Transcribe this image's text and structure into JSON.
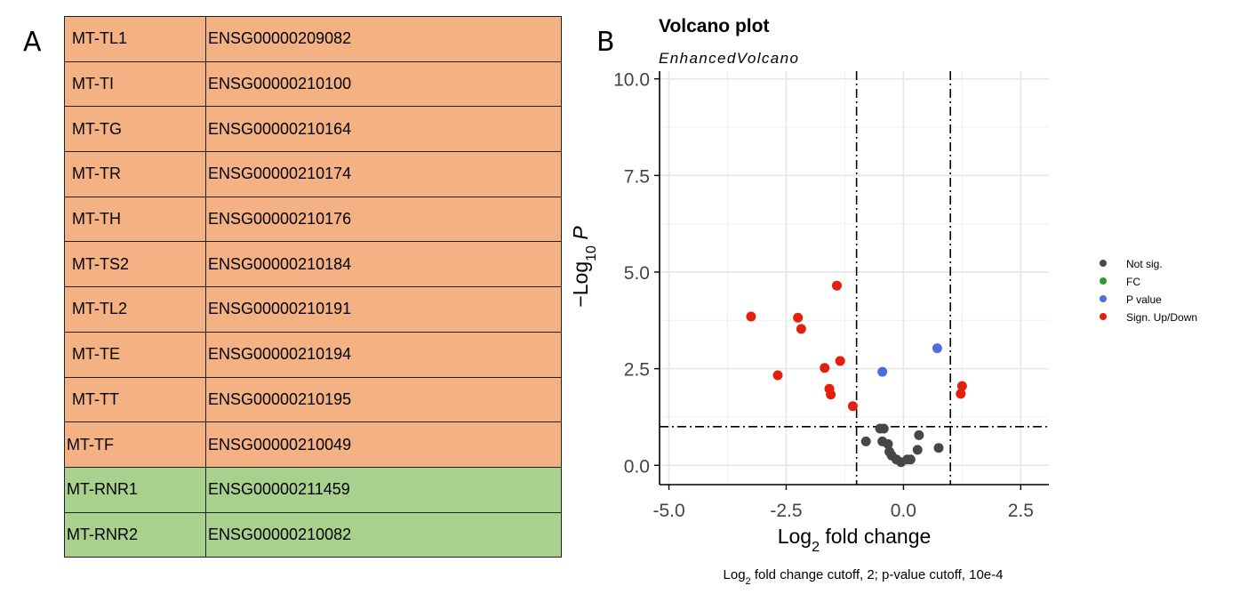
{
  "panel_labels": {
    "a": "A",
    "b": "B"
  },
  "colors": {
    "orange": "#f4b183",
    "green": "#a9d18e",
    "not_sig": "#474747",
    "fc": "#2a9d2a",
    "pvalue": "#4c6ce0",
    "sig": "#e3200b"
  },
  "table": {
    "rows": [
      {
        "symbol": "MT-TL1",
        "ensembl": "ENSG00000209082",
        "group": "orange"
      },
      {
        "symbol": "MT-TI",
        "ensembl": "ENSG00000210100",
        "group": "orange"
      },
      {
        "symbol": "MT-TG",
        "ensembl": "ENSG00000210164",
        "group": "orange"
      },
      {
        "symbol": "MT-TR",
        "ensembl": "ENSG00000210174",
        "group": "orange"
      },
      {
        "symbol": "MT-TH",
        "ensembl": "ENSG00000210176",
        "group": "orange"
      },
      {
        "symbol": "MT-TS2",
        "ensembl": "ENSG00000210184",
        "group": "orange"
      },
      {
        "symbol": "MT-TL2",
        "ensembl": "ENSG00000210191",
        "group": "orange"
      },
      {
        "symbol": "MT-TE",
        "ensembl": "ENSG00000210194",
        "group": "orange"
      },
      {
        "symbol": "MT-TT",
        "ensembl": "ENSG00000210195",
        "group": "orange"
      },
      {
        "symbol": "MT-TF",
        "ensembl": "ENSG00000210049",
        "group": "orange"
      },
      {
        "symbol": "MT-RNR1",
        "ensembl": "ENSG00000211459",
        "group": "green"
      },
      {
        "symbol": "MT-RNR2",
        "ensembl": "ENSG00000210082",
        "group": "green"
      }
    ]
  },
  "chart_data": {
    "type": "scatter",
    "title": "Volcano plot",
    "subtitle": "EnhancedVolcano",
    "xlabel": {
      "prefix": "Log",
      "sub": "2",
      "suffix": " fold change"
    },
    "ylabel": {
      "prefix": "−Log",
      "sub": "10",
      "suffix": " P"
    },
    "caption": {
      "prefix": "Log",
      "sub": "2",
      "suffix": " fold change cutoff, 2; p-value cutoff, 10e-4"
    },
    "xlim": [
      -5.2,
      3.1
    ],
    "ylim": [
      -0.5,
      10.2
    ],
    "xticks": [
      -5.0,
      -2.5,
      0.0,
      2.5
    ],
    "xtick_labels": [
      "-5.0",
      "-2.5",
      "0.0",
      "2.5"
    ],
    "yticks": [
      0.0,
      2.5,
      5.0,
      7.5,
      10.0
    ],
    "ytick_labels": [
      "0.0",
      "2.5",
      "5.0",
      "7.5",
      "10.0"
    ],
    "grid": true,
    "cutoffs": {
      "fc": [
        -1,
        1
      ],
      "p": 1
    },
    "legend_position": "right",
    "series": [
      {
        "name": "Not sig.",
        "color": "#474747",
        "points": [
          [
            -0.5,
            0.95
          ],
          [
            -0.42,
            0.95
          ],
          [
            -0.8,
            0.62
          ],
          [
            -0.45,
            0.62
          ],
          [
            -0.33,
            0.55
          ],
          [
            -0.3,
            0.35
          ],
          [
            -0.25,
            0.25
          ],
          [
            -0.15,
            0.15
          ],
          [
            -0.05,
            0.08
          ],
          [
            0.08,
            0.15
          ],
          [
            0.15,
            0.15
          ],
          [
            0.3,
            0.4
          ],
          [
            0.33,
            0.78
          ],
          [
            0.75,
            0.45
          ]
        ]
      },
      {
        "name": "FC",
        "color": "#2a9d2a",
        "points": []
      },
      {
        "name": "P value",
        "color": "#4c6ce0",
        "points": [
          [
            -0.45,
            2.42
          ],
          [
            0.72,
            3.03
          ]
        ]
      },
      {
        "name": "Sign. Up/Down",
        "color": "#e3200b",
        "points": [
          [
            -3.25,
            3.85
          ],
          [
            -2.25,
            3.82
          ],
          [
            -2.18,
            3.53
          ],
          [
            -2.68,
            2.33
          ],
          [
            -1.42,
            4.65
          ],
          [
            -1.35,
            2.7
          ],
          [
            -1.68,
            2.52
          ],
          [
            -1.58,
            1.98
          ],
          [
            -1.55,
            1.83
          ],
          [
            -1.08,
            1.53
          ],
          [
            1.22,
            1.85
          ],
          [
            1.25,
            2.05
          ]
        ]
      }
    ]
  }
}
